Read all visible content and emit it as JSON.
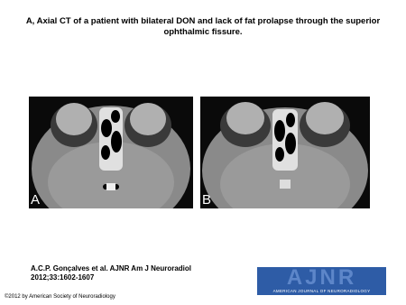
{
  "title_lines": [
    "A, Axial CT of a patient with bilateral DON and lack of fat prolapse through the superior",
    "ophthalmic fissure."
  ],
  "panels": [
    {
      "label": "A"
    },
    {
      "label": "B"
    }
  ],
  "citation_lines": [
    "A.C.P. Gonçalves et al. AJNR Am J Neuroradiol",
    "2012;33:1602-1607"
  ],
  "logo": {
    "text": "AJNR",
    "subtitle": "AMERICAN JOURNAL OF NEURORADIOLOGY"
  },
  "copyright": "©2012 by American Society of Neuroradiology"
}
